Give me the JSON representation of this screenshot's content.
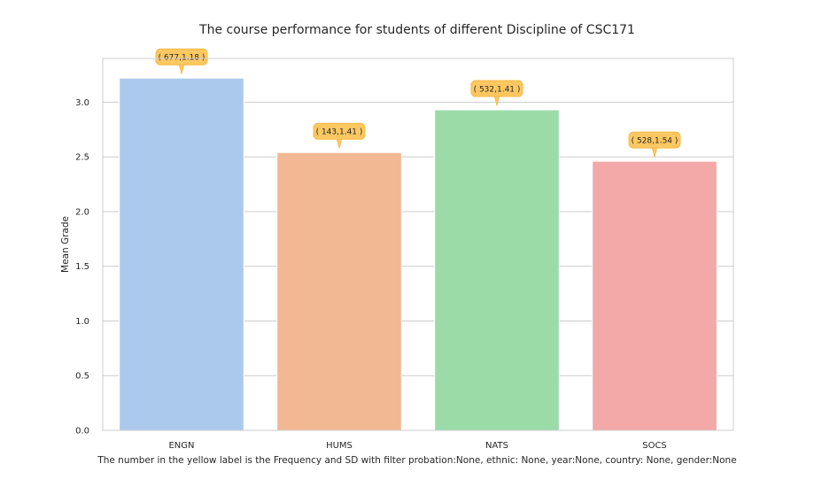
{
  "chart_data": {
    "type": "bar",
    "title": "The course performance for students of different Discipline of CSC171",
    "xlabel": "",
    "ylabel": "Mean Grade",
    "caption": "The number in the yellow label is the Frequency and SD with filter probation:None, ethnic: None, year:None, country: None, gender:None",
    "categories": [
      "ENGN",
      "HUMS",
      "NATS",
      "SOCS"
    ],
    "values": [
      3.22,
      2.54,
      2.93,
      2.46
    ],
    "annotations": [
      "( 677,1.18 )",
      "( 143,1.41 )",
      "( 532,1.41 )",
      "( 528,1.54 )"
    ],
    "bar_colors": [
      "#abc9ed",
      "#f1b893",
      "#9bdba8",
      "#f2a9a8"
    ],
    "annotation_color": "#fdc861",
    "ylim": [
      0,
      3.4
    ],
    "yticks": [
      "0.0",
      "0.5",
      "1.0",
      "1.5",
      "2.0",
      "2.5",
      "3.0"
    ],
    "grid": true
  }
}
